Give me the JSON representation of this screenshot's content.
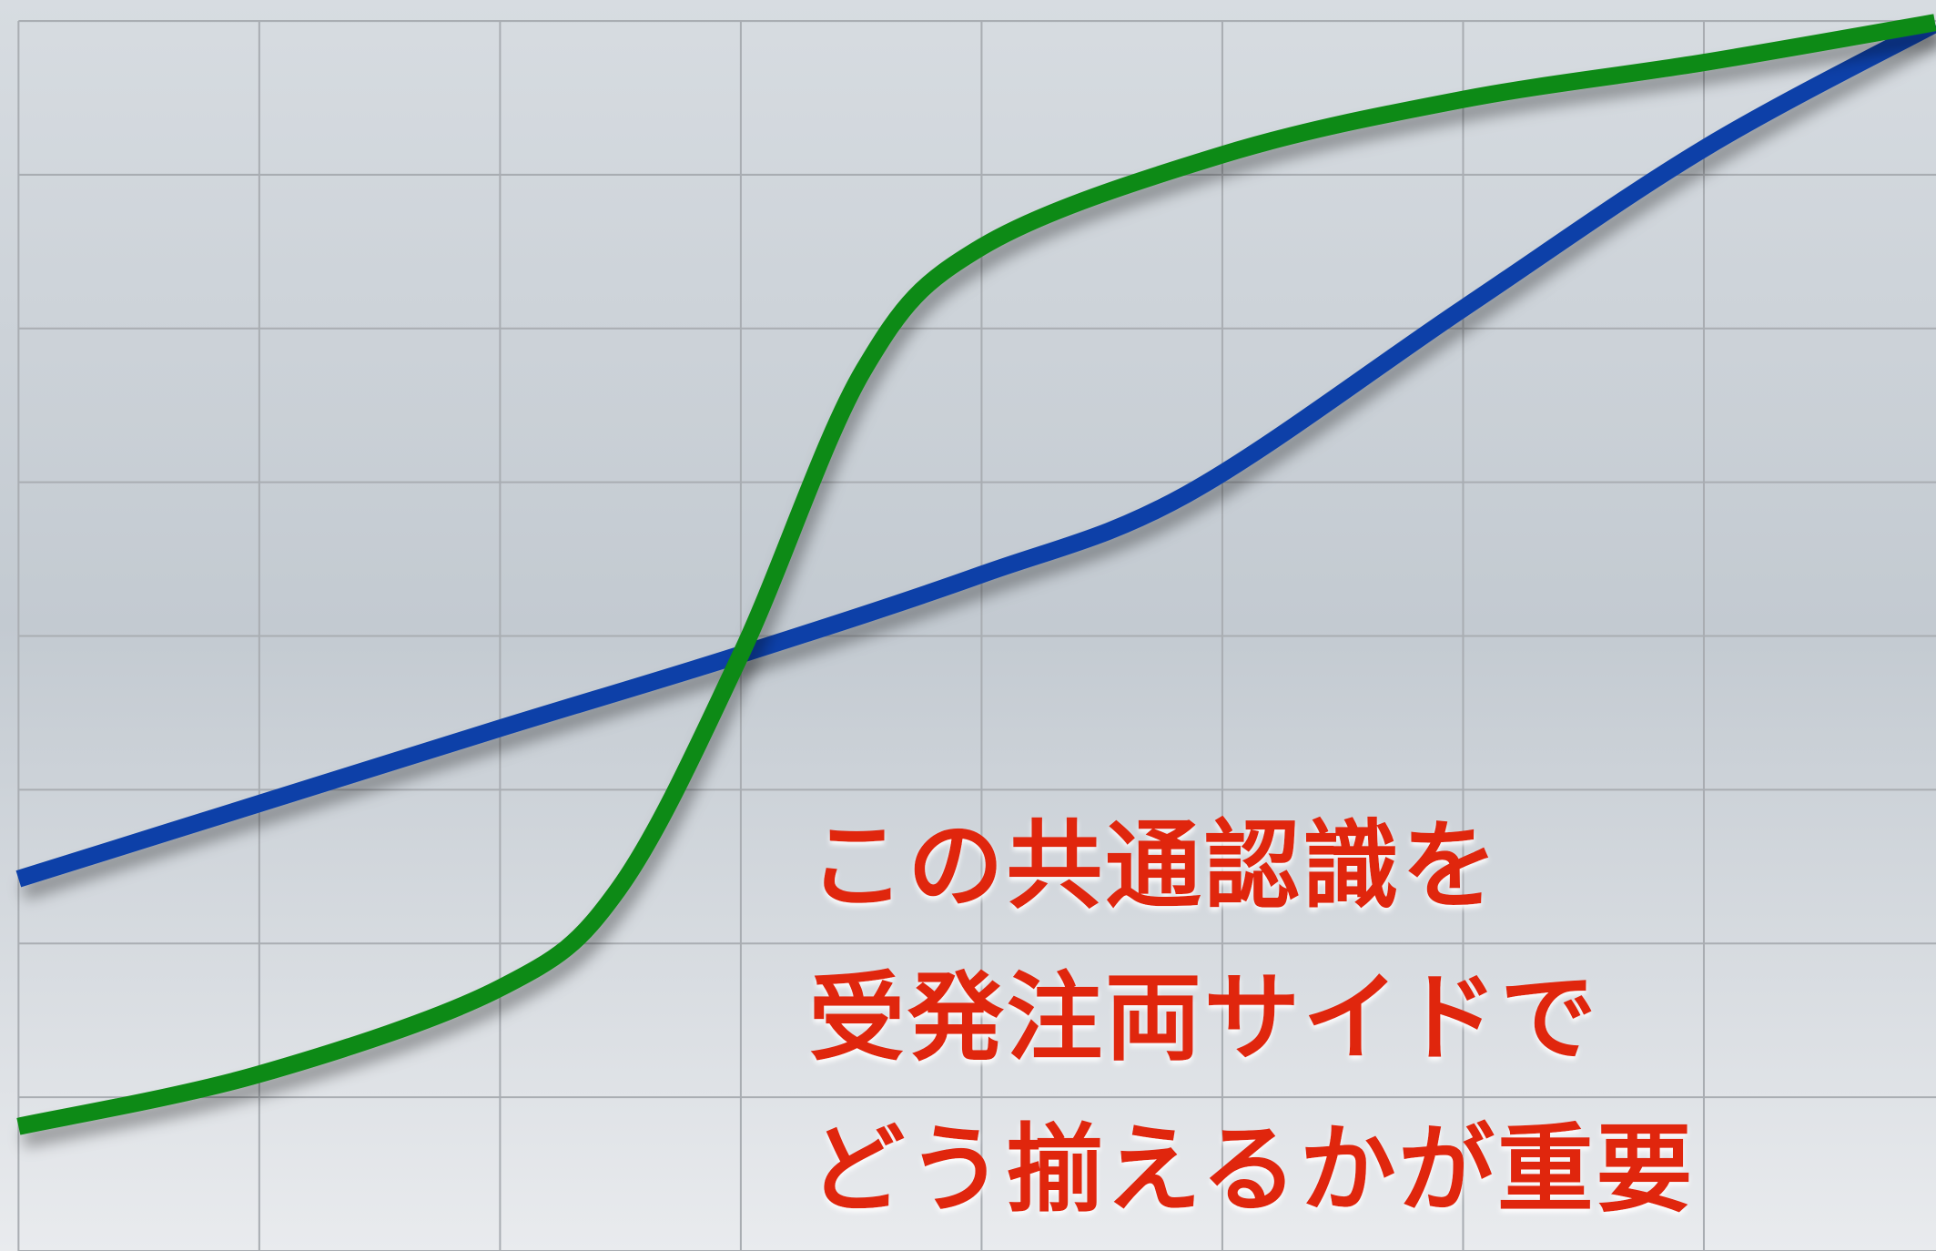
{
  "chart_data": {
    "type": "line",
    "annotation": [
      "この共通認識を",
      "受発注両サイドで",
      "どう揃えるかが重要"
    ],
    "series": [
      {
        "color": "#0a3fa8",
        "x": [
          0,
          1,
          2,
          3,
          4,
          4.85,
          6,
          7,
          7.96
        ],
        "values": [
          2.42,
          2.91,
          3.4,
          3.88,
          4.4,
          4.92,
          6.13,
          7.17,
          7.98
        ]
      },
      {
        "color": "#0a8a12",
        "x": [
          0,
          1,
          2,
          2.49,
          3,
          3.51,
          4,
          5,
          6,
          7,
          7.96
        ],
        "values": [
          0.81,
          1.15,
          1.71,
          2.35,
          3.88,
          5.73,
          6.53,
          7.13,
          7.49,
          7.73,
          7.99
        ]
      }
    ],
    "vline": {
      "x": 3,
      "color": "#c81e0a"
    },
    "xlim": [
      0,
      8
    ],
    "ylim": [
      0,
      8
    ],
    "xticks": [
      0,
      1,
      2,
      3,
      4,
      5,
      6,
      7,
      8
    ],
    "yticks": [
      0,
      1,
      2,
      3,
      4,
      5,
      6,
      7,
      8
    ],
    "grid": true,
    "text_color": "#e0260e"
  }
}
